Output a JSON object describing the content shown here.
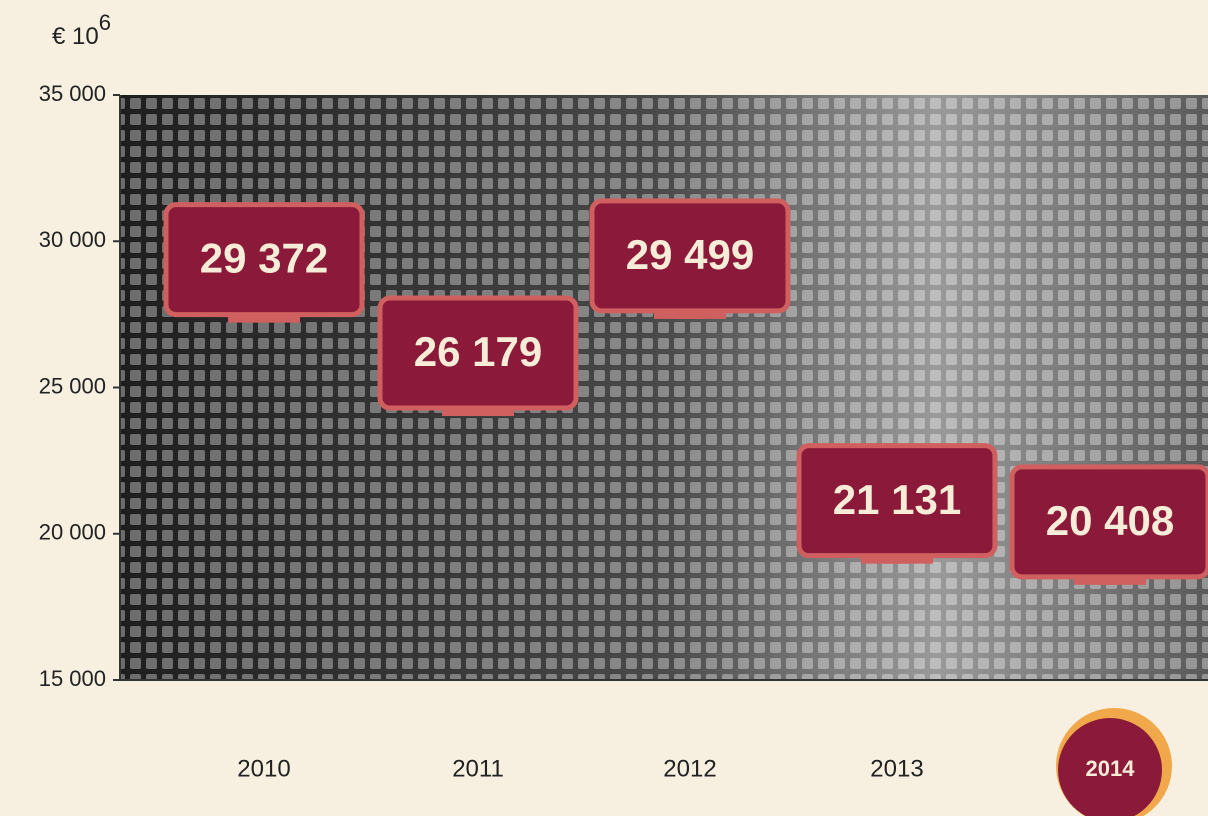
{
  "chart_data": {
    "type": "monitor",
    "ylabel": {
      "base": "€ 10",
      "exponent": "6"
    },
    "categories": [
      "2010",
      "2011",
      "2012",
      "2013",
      "2014"
    ],
    "values": [
      29372,
      26179,
      29499,
      21131,
      20408
    ],
    "value_labels": [
      "29 372",
      "26 179",
      "29 499",
      "21 131",
      "20 408"
    ],
    "color": "#8b1a3a",
    "ylim": [
      15000,
      35000
    ],
    "yticks": [
      {
        "value": 15000,
        "label": "15 000"
      },
      {
        "value": 20000,
        "label": "20 000"
      },
      {
        "value": 25000,
        "label": "25 000"
      },
      {
        "value": 30000,
        "label": "30 000"
      },
      {
        "value": 35000,
        "label": "35 000"
      }
    ]
  }
}
